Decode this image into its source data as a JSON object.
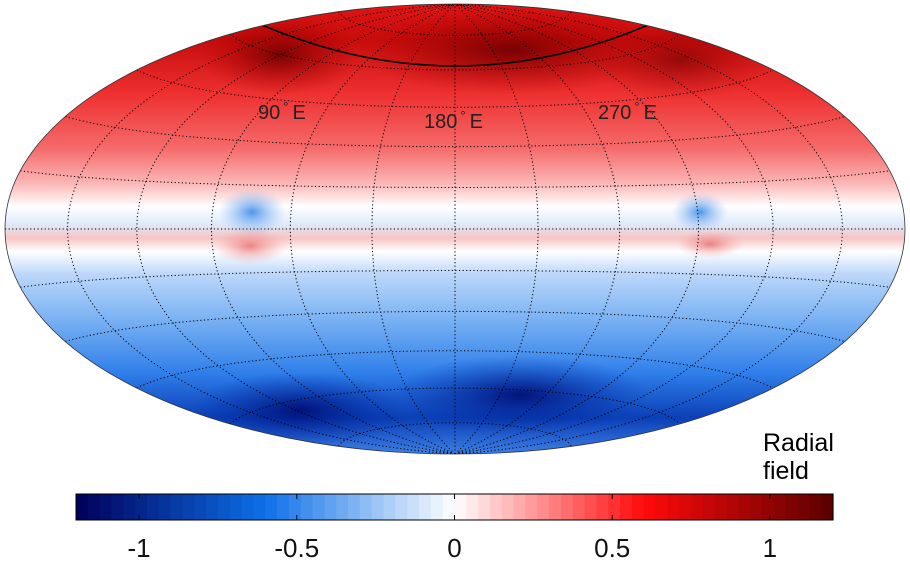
{
  "map": {
    "projection": "Hammer-Aitoff",
    "longitude_labels": [
      {
        "deg": "90",
        "sym": "°",
        "suffix": "E"
      },
      {
        "deg": "180",
        "sym": "°",
        "suffix": "E"
      },
      {
        "deg": "270",
        "sym": "°",
        "suffix": "E"
      }
    ],
    "grid_style": "dotted"
  },
  "colorbar": {
    "label_line1": "Radial",
    "label_line2": "field",
    "range": [
      -1.2,
      1.2
    ],
    "ticks": [
      {
        "value": -1,
        "label": "-1"
      },
      {
        "value": -0.5,
        "label": "-0.5"
      },
      {
        "value": 0,
        "label": "0"
      },
      {
        "value": 0.5,
        "label": "0.5"
      },
      {
        "value": 1,
        "label": "1"
      }
    ],
    "colors": {
      "dark_blue": "#00005a",
      "blue": "#0d6fe8",
      "white": "#ffffff",
      "red": "#ff0a0a",
      "dark_red": "#5a0000"
    }
  }
}
